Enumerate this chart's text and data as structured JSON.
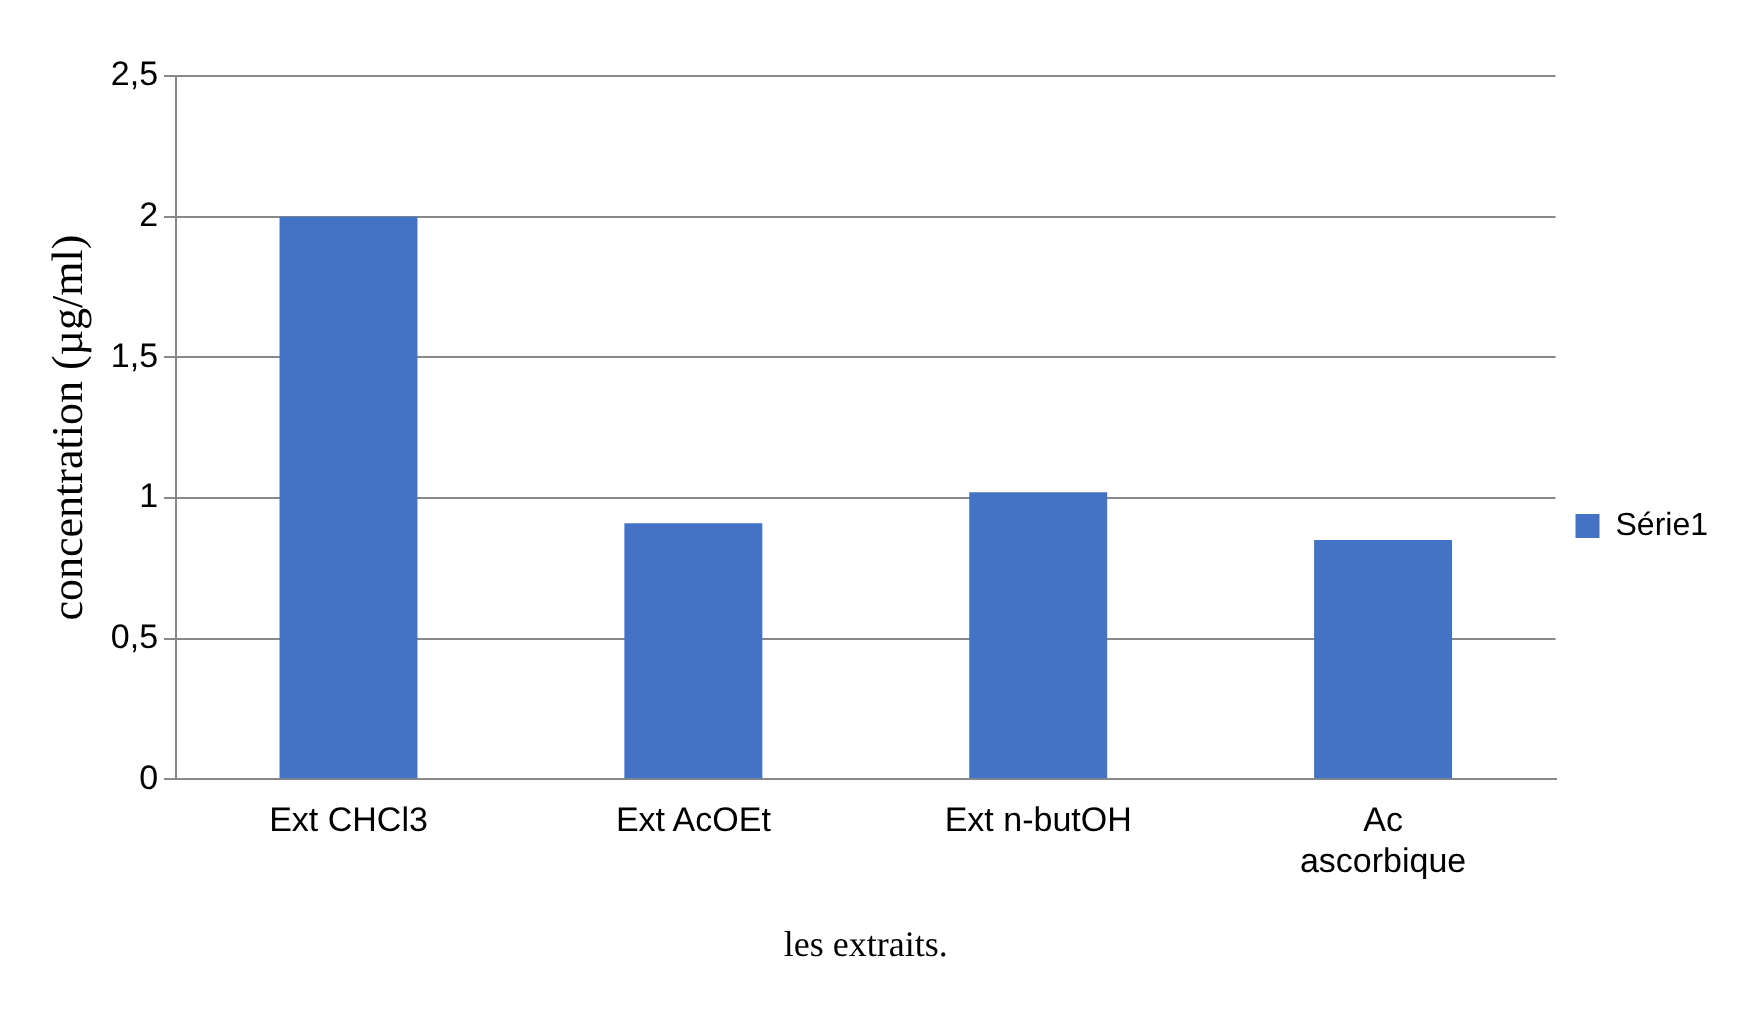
{
  "chart_data": {
    "type": "bar",
    "xlabel": "les extraits.",
    "ylabel": "concentration (µg/ml)",
    "categories": [
      "Ext CHCl3",
      "Ext AcOEt",
      "Ext n-butOH",
      "Ac ascorbique"
    ],
    "series": [
      {
        "name": "Série1",
        "color": "#4472c4",
        "values": [
          2.0,
          0.91,
          1.02,
          0.85
        ]
      }
    ],
    "ylim": [
      0,
      2.5
    ],
    "yticks": [
      {
        "value": 0,
        "label": "0"
      },
      {
        "value": 0.5,
        "label": "0,5"
      },
      {
        "value": 1,
        "label": "1"
      },
      {
        "value": 1.5,
        "label": "1,5"
      },
      {
        "value": 2,
        "label": "2"
      },
      {
        "value": 2.5,
        "label": "2,5"
      }
    ],
    "grid": "y",
    "legend": "right"
  }
}
